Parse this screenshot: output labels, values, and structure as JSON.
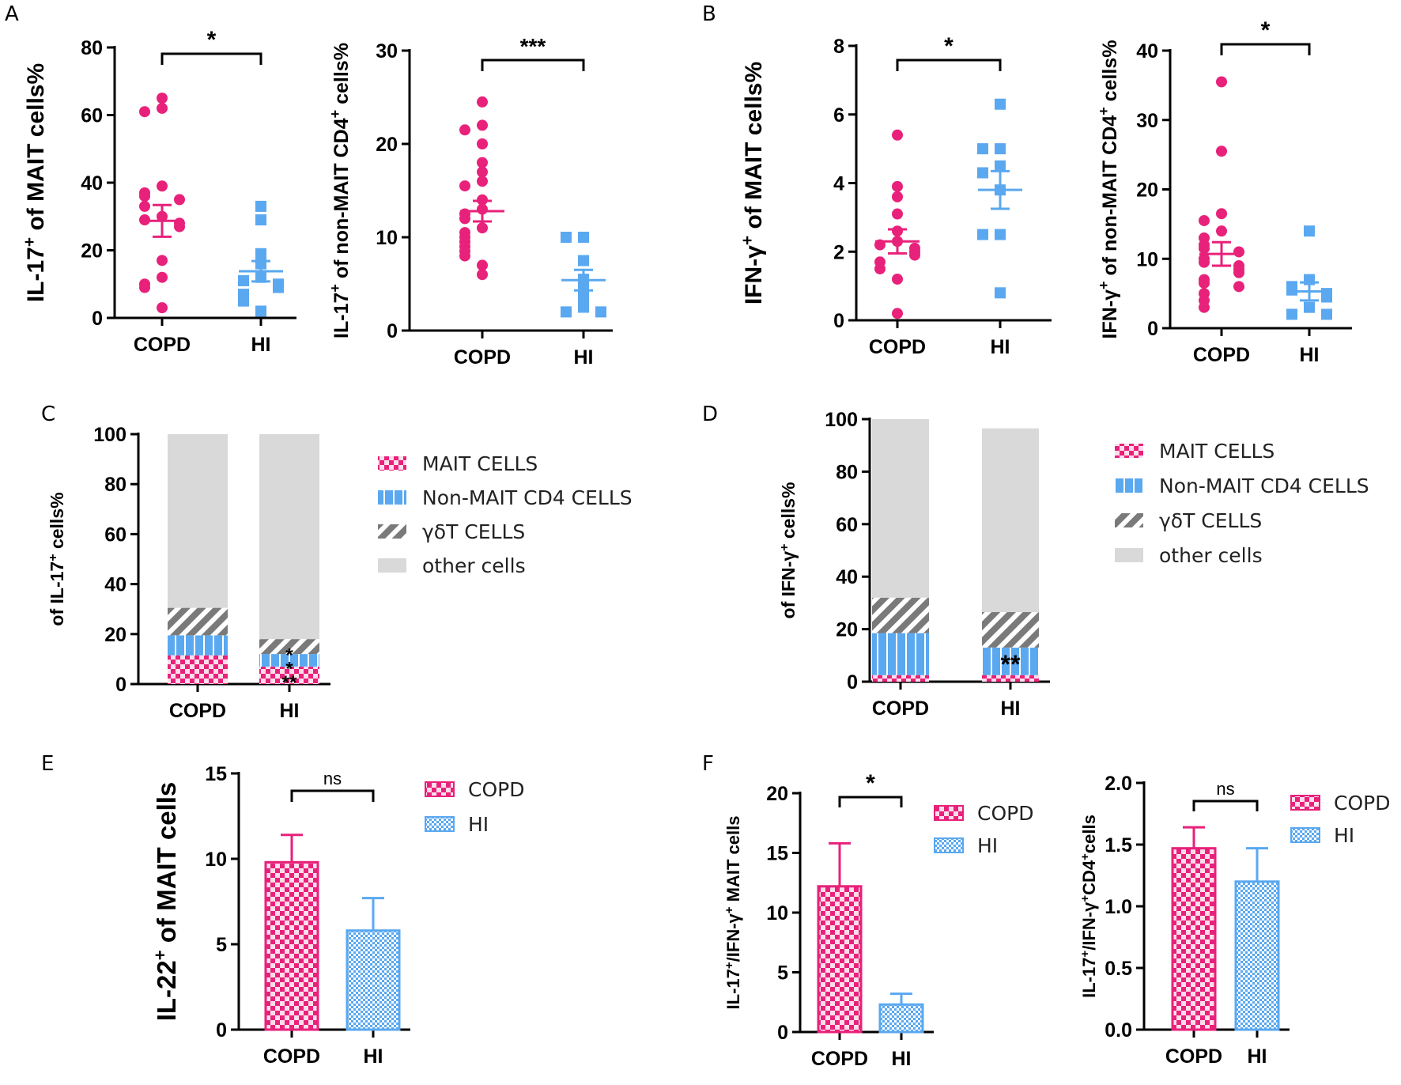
{
  "panels": {
    "A": "A",
    "B": "B",
    "C": "C",
    "D": "D",
    "E": "E",
    "F": "F"
  },
  "colors": {
    "copd": "#e8217a",
    "hi": "#5aa8f0",
    "gd": "#7a7a7a",
    "other": "#d9d9d9"
  },
  "group_labels": {
    "copd": "COPD",
    "hi": "HI"
  },
  "chart_data": [
    {
      "id": "A1",
      "type": "scatter",
      "ylabel_main": "IL-17",
      "ylabel_sup": "+",
      "ylabel_rest": " of MAIT cells%",
      "ylim": [
        0,
        80
      ],
      "yticks": [
        0,
        20,
        40,
        60,
        80
      ],
      "yticklabels": [
        "0",
        "20",
        "40",
        "60",
        "80"
      ],
      "categories": [
        "COPD",
        "HI"
      ],
      "series": [
        {
          "name": "COPD",
          "values": [
            65,
            62,
            61,
            39,
            37,
            36,
            35,
            33,
            30,
            29,
            28,
            27,
            17,
            12,
            10,
            9,
            3
          ],
          "mean": 28.7,
          "sem": 4.7
        },
        {
          "name": "HI",
          "values": [
            33,
            29,
            19,
            16,
            12,
            11,
            10,
            9,
            7,
            5,
            2
          ],
          "mean": 13.8,
          "sem": 3.0
        }
      ],
      "significance": "*"
    },
    {
      "id": "A2",
      "type": "scatter",
      "ylabel_main": "IL-17",
      "ylabel_sup": "+",
      "ylabel_rest": " of non-MAIT CD4",
      "ylabel_sup2": "+",
      "ylabel_rest2": " cells%",
      "ylim": [
        0,
        30
      ],
      "yticks": [
        0,
        10,
        20,
        30
      ],
      "yticklabels": [
        "0",
        "10",
        "20",
        "30"
      ],
      "categories": [
        "COPD",
        "HI"
      ],
      "series": [
        {
          "name": "COPD",
          "values": [
            24.5,
            22,
            21.5,
            20,
            18,
            17,
            16,
            15.5,
            14,
            13,
            12.5,
            12,
            11,
            10.5,
            10,
            9.5,
            9,
            8.5,
            8,
            7,
            6
          ],
          "mean": 12.8,
          "sem": 1.1
        },
        {
          "name": "HI",
          "values": [
            10,
            10,
            7.5,
            5.5,
            4.5,
            3.5,
            2.5,
            2,
            2
          ],
          "mean": 5.4,
          "sem": 1.1
        }
      ],
      "significance": "***"
    },
    {
      "id": "B1",
      "type": "scatter",
      "ylabel_main": "IFN-γ",
      "ylabel_sup": "+",
      "ylabel_rest": " of MAIT cells%",
      "ylim": [
        0,
        8
      ],
      "yticks": [
        0,
        2,
        4,
        6,
        8
      ],
      "yticklabels": [
        "0",
        "2",
        "4",
        "6",
        "8"
      ],
      "categories": [
        "COPD",
        "HI"
      ],
      "series": [
        {
          "name": "COPD",
          "values": [
            5.4,
            3.9,
            3.6,
            3.1,
            2.6,
            2.3,
            2.2,
            2.1,
            2.0,
            1.9,
            1.7,
            1.5,
            1.2,
            0.2
          ],
          "mean": 2.3,
          "sem": 0.35
        },
        {
          "name": "HI",
          "values": [
            6.3,
            5.0,
            5.0,
            4.5,
            4.3,
            3.8,
            2.5,
            2.5,
            0.8
          ],
          "mean": 3.8,
          "sem": 0.55
        }
      ],
      "significance": "*"
    },
    {
      "id": "B2",
      "type": "scatter",
      "ylabel_main": "IFN-γ",
      "ylabel_sup": "+",
      "ylabel_rest": " of non-MAIT CD4",
      "ylabel_sup2": "+",
      "ylabel_rest2": " cells%",
      "ylim": [
        0,
        40
      ],
      "yticks": [
        0,
        10,
        20,
        30,
        40
      ],
      "yticklabels": [
        "0",
        "10",
        "20",
        "30",
        "40"
      ],
      "categories": [
        "COPD",
        "HI"
      ],
      "series": [
        {
          "name": "COPD",
          "values": [
            35.5,
            25.5,
            16.5,
            15.5,
            14,
            13,
            12,
            11.5,
            11,
            10,
            9.5,
            9,
            8.5,
            8,
            7,
            6.5,
            6,
            5,
            4,
            3
          ],
          "mean": 10.7,
          "sem": 1.7
        },
        {
          "name": "HI",
          "values": [
            14,
            7,
            6,
            5.5,
            5,
            4.5,
            3,
            2,
            2
          ],
          "mean": 5.3,
          "sem": 1.3
        }
      ],
      "significance": "*"
    },
    {
      "id": "C",
      "type": "bar",
      "ylabel": "of IL-17+ cells%",
      "ylabel_pre": "of IL-17",
      "ylabel_sup": "+",
      "ylabel_post": " cells%",
      "ylim": [
        0,
        100
      ],
      "yticks": [
        0,
        20,
        40,
        60,
        80,
        100
      ],
      "yticklabels": [
        "0",
        "20",
        "40",
        "60",
        "80",
        "100"
      ],
      "categories": [
        "COPD",
        "HI"
      ],
      "stacked": true,
      "series": [
        {
          "name": "MAIT CELLS",
          "values": [
            11.5,
            7
          ]
        },
        {
          "name": "Non-MAIT CD4 CELLS",
          "values": [
            8,
            5
          ]
        },
        {
          "name": "γδT CELLS",
          "values": [
            11,
            6
          ]
        },
        {
          "name": "other cells",
          "values": [
            69.5,
            82
          ]
        }
      ],
      "annotations": [
        "*",
        "*",
        "**"
      ]
    },
    {
      "id": "D",
      "type": "bar",
      "ylabel": "of IFN-γ+ cells%",
      "ylabel_pre": "of IFN-γ",
      "ylabel_sup": "+",
      "ylabel_post": " cells%",
      "ylim": [
        0,
        100
      ],
      "yticks": [
        0,
        20,
        40,
        60,
        80,
        100
      ],
      "yticklabels": [
        "0",
        "20",
        "40",
        "60",
        "80",
        "100"
      ],
      "categories": [
        "COPD",
        "HI"
      ],
      "stacked": true,
      "series": [
        {
          "name": "MAIT CELLS",
          "values": [
            2.5,
            2.5
          ]
        },
        {
          "name": "Non-MAIT CD4 CELLS",
          "values": [
            16,
            10.5
          ]
        },
        {
          "name": "γδT CELLS",
          "values": [
            13.5,
            13.5
          ]
        },
        {
          "name": "other cells",
          "values": [
            68,
            70
          ]
        }
      ],
      "annotations": [
        "**"
      ]
    },
    {
      "id": "E",
      "type": "bar",
      "ylabel_main": "IL-22",
      "ylabel_sup": "+",
      "ylabel_rest": " of MAIT cells",
      "ylim": [
        0,
        15
      ],
      "yticks": [
        0,
        5,
        10,
        15
      ],
      "yticklabels": [
        "0",
        "5",
        "10",
        "15"
      ],
      "categories": [
        "COPD",
        "HI"
      ],
      "values": [
        9.8,
        5.8
      ],
      "errors": [
        1.6,
        1.9
      ],
      "legend": [
        "COPD",
        "HI"
      ],
      "significance": "ns"
    },
    {
      "id": "F1",
      "type": "bar",
      "ylabel_a": "IL-17",
      "ylabel_sup1": "+",
      "ylabel_b": "/IFN-γ",
      "ylabel_sup2": "+",
      "ylabel_c": " MAIT cells",
      "ylim": [
        0,
        20
      ],
      "yticks": [
        0,
        5,
        10,
        15,
        20
      ],
      "yticklabels": [
        "0",
        "5",
        "10",
        "15",
        "20"
      ],
      "categories": [
        "COPD",
        "HI"
      ],
      "values": [
        12.2,
        2.3
      ],
      "errors": [
        3.6,
        0.9
      ],
      "legend": [
        "COPD",
        "HI"
      ],
      "significance": "*"
    },
    {
      "id": "F2",
      "type": "bar",
      "ylabel_a": "IL-17",
      "ylabel_sup1": "+",
      "ylabel_b": "/IFN-γ",
      "ylabel_sup2": "+",
      "ylabel_c": "CD4",
      "ylabel_sup3": "+",
      "ylabel_d": "cells",
      "ylim": [
        0,
        2.0
      ],
      "yticks": [
        0,
        0.5,
        1.0,
        1.5,
        2.0
      ],
      "yticklabels": [
        "0.0",
        "0.5",
        "1.0",
        "1.5",
        "2.0"
      ],
      "categories": [
        "COPD",
        "HI"
      ],
      "values": [
        1.47,
        1.2
      ],
      "errors": [
        0.17,
        0.27
      ],
      "legend": [
        "COPD",
        "HI"
      ],
      "significance": "ns"
    }
  ]
}
